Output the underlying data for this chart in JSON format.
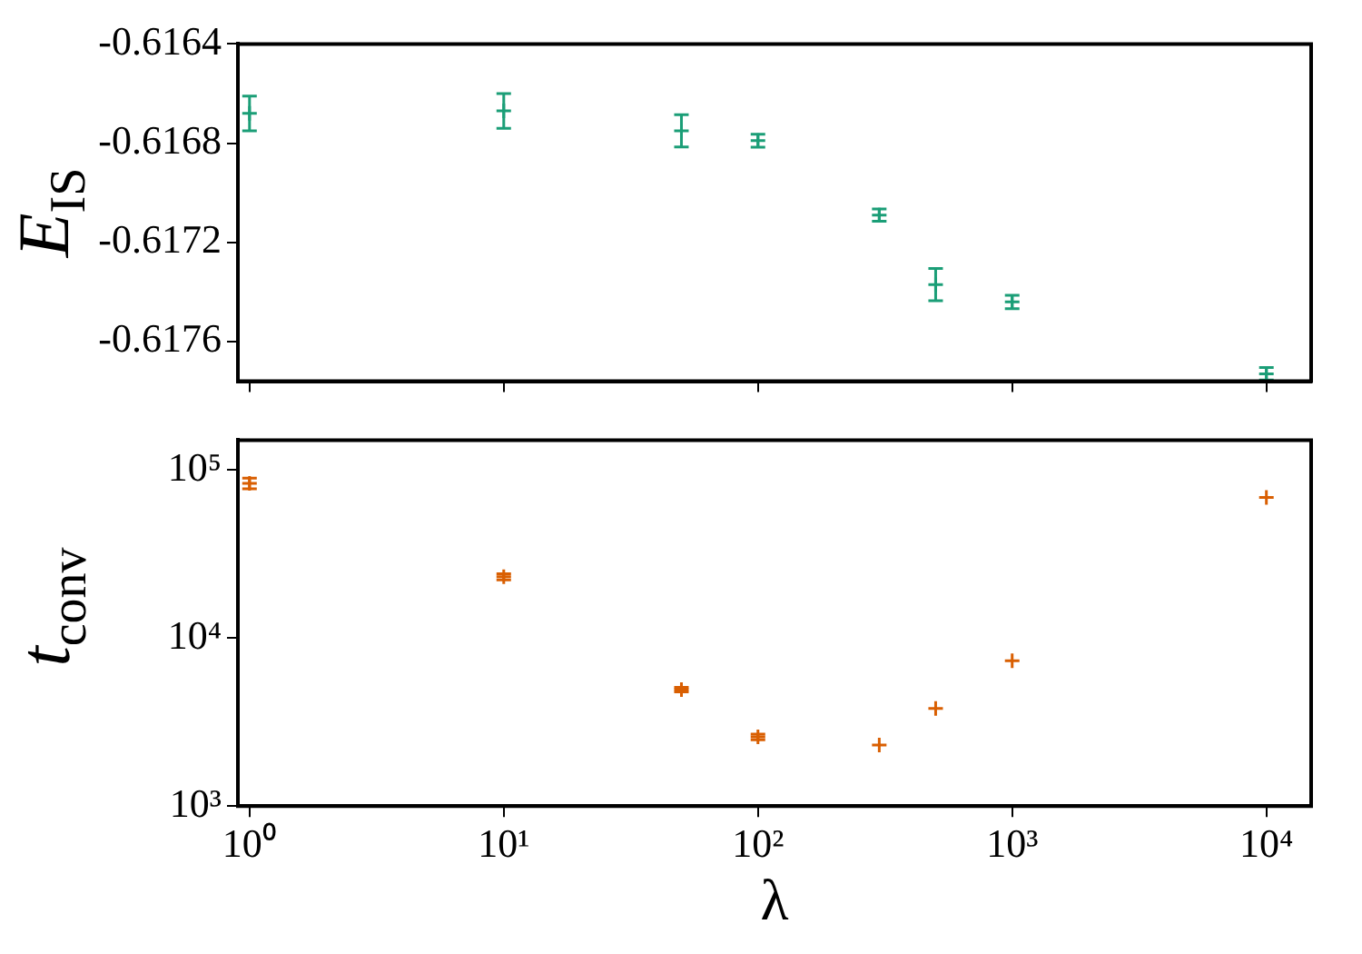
{
  "chart_data": [
    {
      "type": "scatter",
      "ylabel": "E$_{IS}$",
      "marker": "cross",
      "grid": false,
      "log": "x",
      "tick_labels": "y",
      "x": [
        1,
        10,
        50,
        100,
        300,
        500,
        1000,
        10000
      ],
      "series": [
        {
          "color": "#1b9e77",
          "values": [
            -0.61668,
            -0.61667,
            -0.61675,
            -0.61679,
            -0.61709,
            -0.61737,
            -0.61744,
            -0.61773
          ],
          "errors": [
            7e-05,
            7e-05,
            6.5e-05,
            2.6e-05,
            2.5e-05,
            6.5e-05,
            2.7e-05,
            2.5e-05
          ]
        }
      ],
      "xlim": [
        0.9,
        15000
      ],
      "xticks": [
        {
          "value": 1,
          "label": null
        },
        {
          "value": 10,
          "label": null
        },
        {
          "value": 100,
          "label": null
        },
        {
          "value": 1000,
          "label": null
        },
        {
          "value": 10000,
          "label": null
        }
      ],
      "ylim": [
        -0.61776,
        -0.6164
      ],
      "yticks": [
        -0.6164,
        -0.6168,
        -0.6172,
        -0.6176
      ]
    },
    {
      "type": "scatter",
      "xlabel": "λ",
      "ylabel": "t$_{conv}$",
      "marker": "cross",
      "grid": false,
      "log": "xy",
      "x": [
        1,
        10,
        50,
        100,
        300,
        500,
        1000,
        10000
      ],
      "series": [
        {
          "color": "#d95f02",
          "values": [
            83000,
            23100,
            4930,
            2580,
            2310,
            3810,
            7310,
            68400
          ],
          "errors": [
            6000,
            1000,
            150,
            100,
            null,
            null,
            null,
            null
          ]
        }
      ],
      "xlim": [
        0.9,
        15000
      ],
      "xticks": [
        {
          "value": 1,
          "label": "10⁰"
        },
        {
          "value": 10,
          "label": "10¹"
        },
        {
          "value": 100,
          "label": "10²"
        },
        {
          "value": 1000,
          "label": "10³"
        },
        {
          "value": 10000,
          "label": "10⁴"
        }
      ],
      "ylim": [
        1000,
        150000
      ],
      "yticks": [
        {
          "value": 1000,
          "label": "10³"
        },
        {
          "value": 10000,
          "label": "10⁴"
        },
        {
          "value": 100000,
          "label": "10⁵"
        }
      ]
    }
  ]
}
